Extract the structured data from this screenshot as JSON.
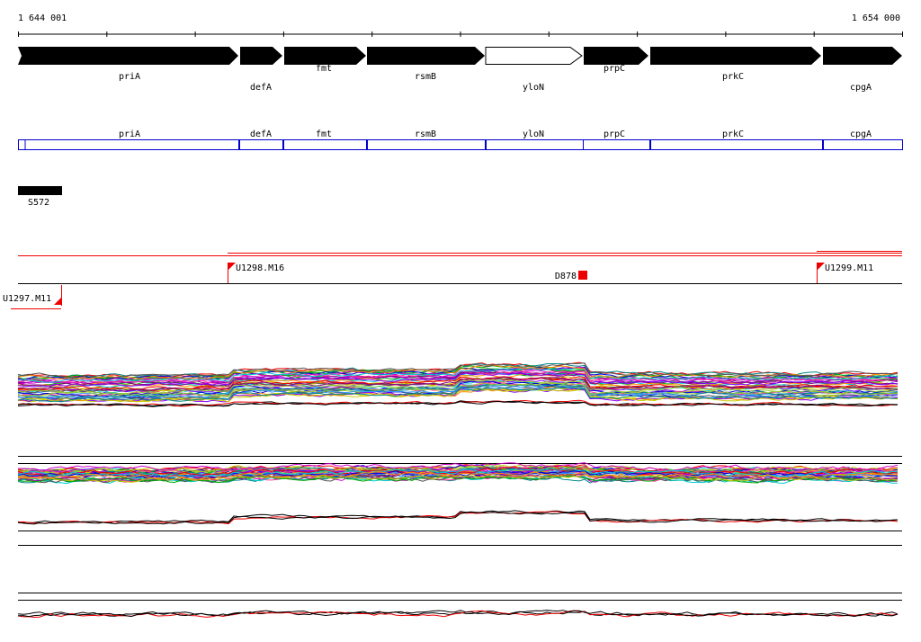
{
  "ruler": {
    "start": "1 644 001",
    "end": "1 654 000"
  },
  "genes": [
    "priA",
    "defA",
    "fmt",
    "rsmB",
    "yloN",
    "prpC",
    "prkC",
    "cpgA"
  ],
  "gene_boxes": [
    "priA",
    "defA",
    "fmt",
    "rsmB",
    "yloN",
    "prpC",
    "prkC",
    "cpgA"
  ],
  "feature": "S572",
  "markers": [
    "U1298.M16",
    "D878",
    "U1299.M11",
    "U1297.M11"
  ]
}
